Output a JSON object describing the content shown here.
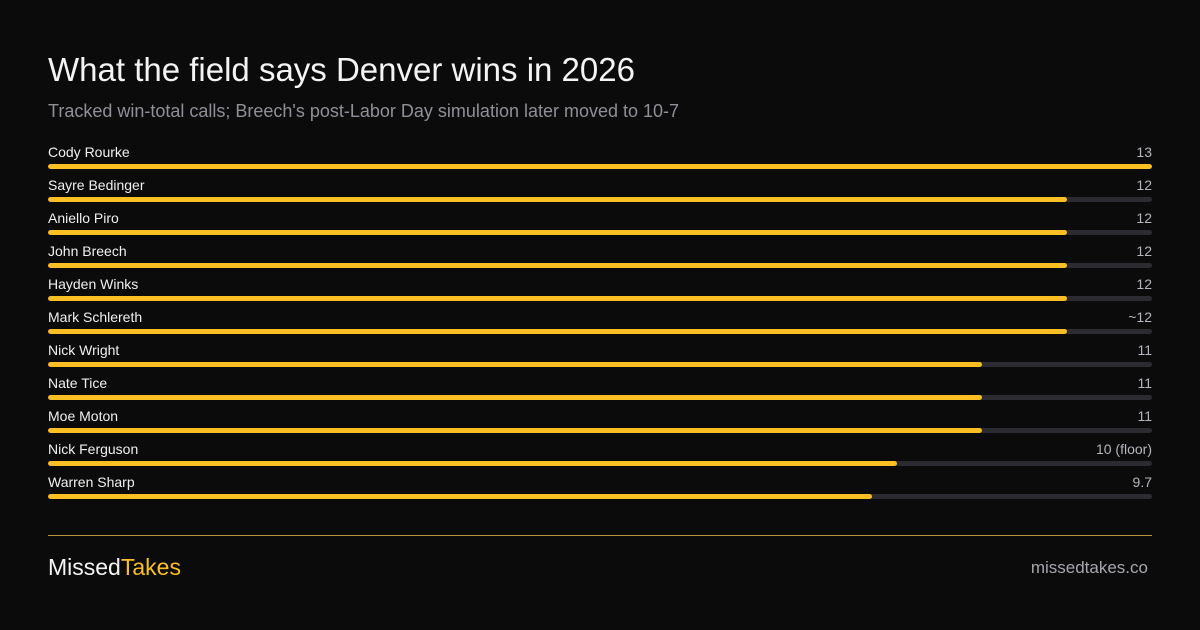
{
  "header": {
    "title": "What the field says Denver wins in 2026",
    "subtitle": "Tracked win-total calls; Breech's post-Labor Day simulation later moved to 10-7"
  },
  "colors": {
    "background": "#0b0b0b",
    "bar_fill": "#fbbf24",
    "bar_track": "#2b2b31",
    "accent": "#fbbf24"
  },
  "chart_data": {
    "type": "bar",
    "orientation": "horizontal",
    "categories": [
      "Cody Rourke",
      "Sayre Bedinger",
      "Aniello Piro",
      "John Breech",
      "Hayden Winks",
      "Mark Schlereth",
      "Nick Wright",
      "Nate Tice",
      "Moe Moton",
      "Nick Ferguson",
      "Warren Sharp"
    ],
    "values": [
      13,
      12,
      12,
      12,
      12,
      12,
      11,
      11,
      11,
      10,
      9.7
    ],
    "value_labels": [
      "13",
      "12",
      "12",
      "12",
      "12",
      "~12",
      "11",
      "11",
      "11",
      "10 (floor)",
      "9.7"
    ],
    "xlim": [
      0,
      13
    ],
    "grid": false,
    "legend": "none"
  },
  "footer": {
    "brand_part1": "Missed",
    "brand_part2": "Takes",
    "site": "missedtakes.co"
  }
}
